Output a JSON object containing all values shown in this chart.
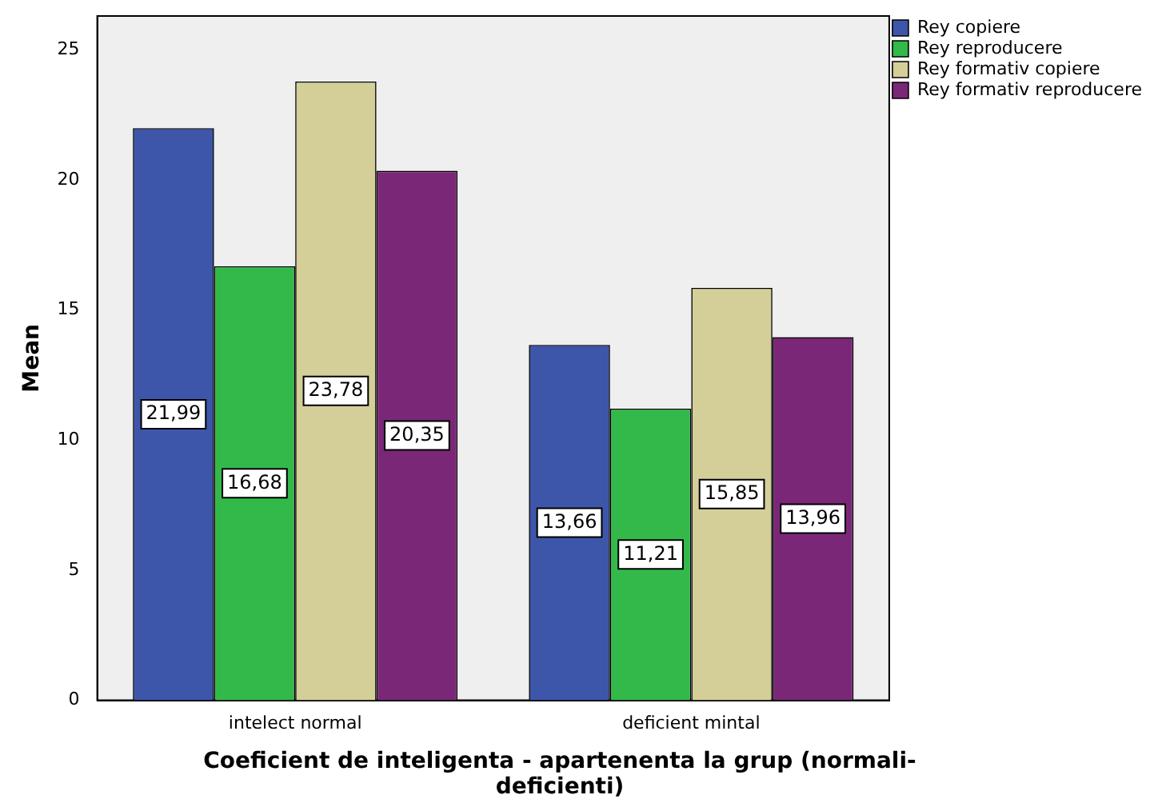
{
  "chart_data": {
    "type": "bar",
    "xlabel": "Coeficient de inteligenta - apartenenta la grup (normali-deficienti)",
    "ylabel": "Mean",
    "categories": [
      "intelect normal",
      "deficient mintal"
    ],
    "series": [
      {
        "name": "Rey copiere",
        "color": "#3e56aa",
        "values": [
          21.99,
          13.66
        ],
        "value_labels": [
          "21,99",
          "13,66"
        ]
      },
      {
        "name": "Rey reproducere",
        "color": "#33b94a",
        "values": [
          16.68,
          11.21
        ],
        "value_labels": [
          "16,68",
          "11,21"
        ]
      },
      {
        "name": "Rey formativ copiere",
        "color": "#d4cf98",
        "values": [
          23.78,
          15.85
        ],
        "value_labels": [
          "23,78",
          "15,85"
        ]
      },
      {
        "name": "Rey formativ reproducere",
        "color": "#7b2777",
        "values": [
          20.35,
          13.96
        ],
        "value_labels": [
          "20,35",
          "13,96"
        ]
      }
    ],
    "ylim": [
      0,
      26.3
    ],
    "yticks": [
      0,
      5,
      10,
      15,
      20,
      25
    ],
    "grid": false,
    "legend": "top right"
  }
}
